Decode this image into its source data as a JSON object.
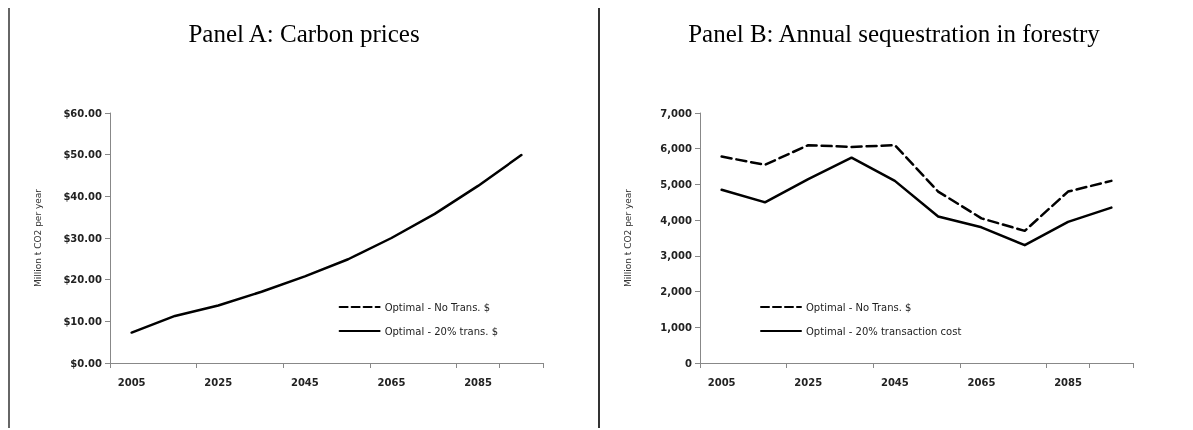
{
  "chart_data": [
    {
      "type": "line",
      "title": "Panel A: Carbon prices",
      "ylabel": "Million t CO2 per year",
      "categories": [
        "2005",
        null,
        "2025",
        null,
        "2045",
        null,
        "2065",
        null,
        "2085",
        null
      ],
      "ylim": [
        0,
        60
      ],
      "yticks": [
        {
          "value": 0,
          "label": "$0.00"
        },
        {
          "value": 10,
          "label": "$10.00"
        },
        {
          "value": 20,
          "label": "$20.00"
        },
        {
          "value": 30,
          "label": "$30.00"
        },
        {
          "value": 40,
          "label": "$40.00"
        },
        {
          "value": 50,
          "label": "$50.00"
        },
        {
          "value": 60,
          "label": "$60.00"
        }
      ],
      "legend": "bottom right",
      "marker": "none",
      "series": [
        {
          "name": "Optimal - No Trans. $",
          "color": "#000000",
          "line_style": "dashed",
          "values": [
            null,
            null,
            null,
            null,
            null,
            null,
            null,
            null,
            null,
            null
          ]
        },
        {
          "name": "Optimal - 20% trans. $",
          "color": "#000000",
          "line_style": "solid",
          "values": [
            7.3,
            11.3,
            13.8,
            17.1,
            20.8,
            24.9,
            30,
            35.8,
            42.5,
            49.9
          ]
        }
      ]
    },
    {
      "type": "line",
      "title": "Panel B: Annual sequestration in forestry",
      "ylabel": "Million t CO2 per year",
      "categories": [
        "2005",
        null,
        "2025",
        null,
        "2045",
        null,
        "2065",
        null,
        "2085",
        null
      ],
      "ylim": [
        0,
        7000
      ],
      "yticks": [
        0,
        {
          "value": 1000,
          "label": "1,000"
        },
        {
          "value": 2000,
          "label": "2,000"
        },
        {
          "value": 3000,
          "label": "3,000"
        },
        {
          "value": 4000,
          "label": "4,000"
        },
        {
          "value": 5000,
          "label": "5,000"
        },
        {
          "value": 6000,
          "label": "6,000"
        },
        {
          "value": 7000,
          "label": "7,000"
        }
      ],
      "legend": "bottom left",
      "marker": "none",
      "series": [
        {
          "name": "Optimal - No Trans. $",
          "color": "#000000",
          "line_style": "dashed",
          "values": [
            5780,
            5550,
            6100,
            6050,
            6100,
            4800,
            4050,
            3700,
            4800,
            5100
          ]
        },
        {
          "name": "Optimal - 20% transaction cost",
          "color": "#000000",
          "line_style": "solid",
          "values": [
            4850,
            4500,
            5150,
            5750,
            5100,
            4100,
            3800,
            3300,
            3950,
            4350
          ]
        }
      ]
    }
  ]
}
